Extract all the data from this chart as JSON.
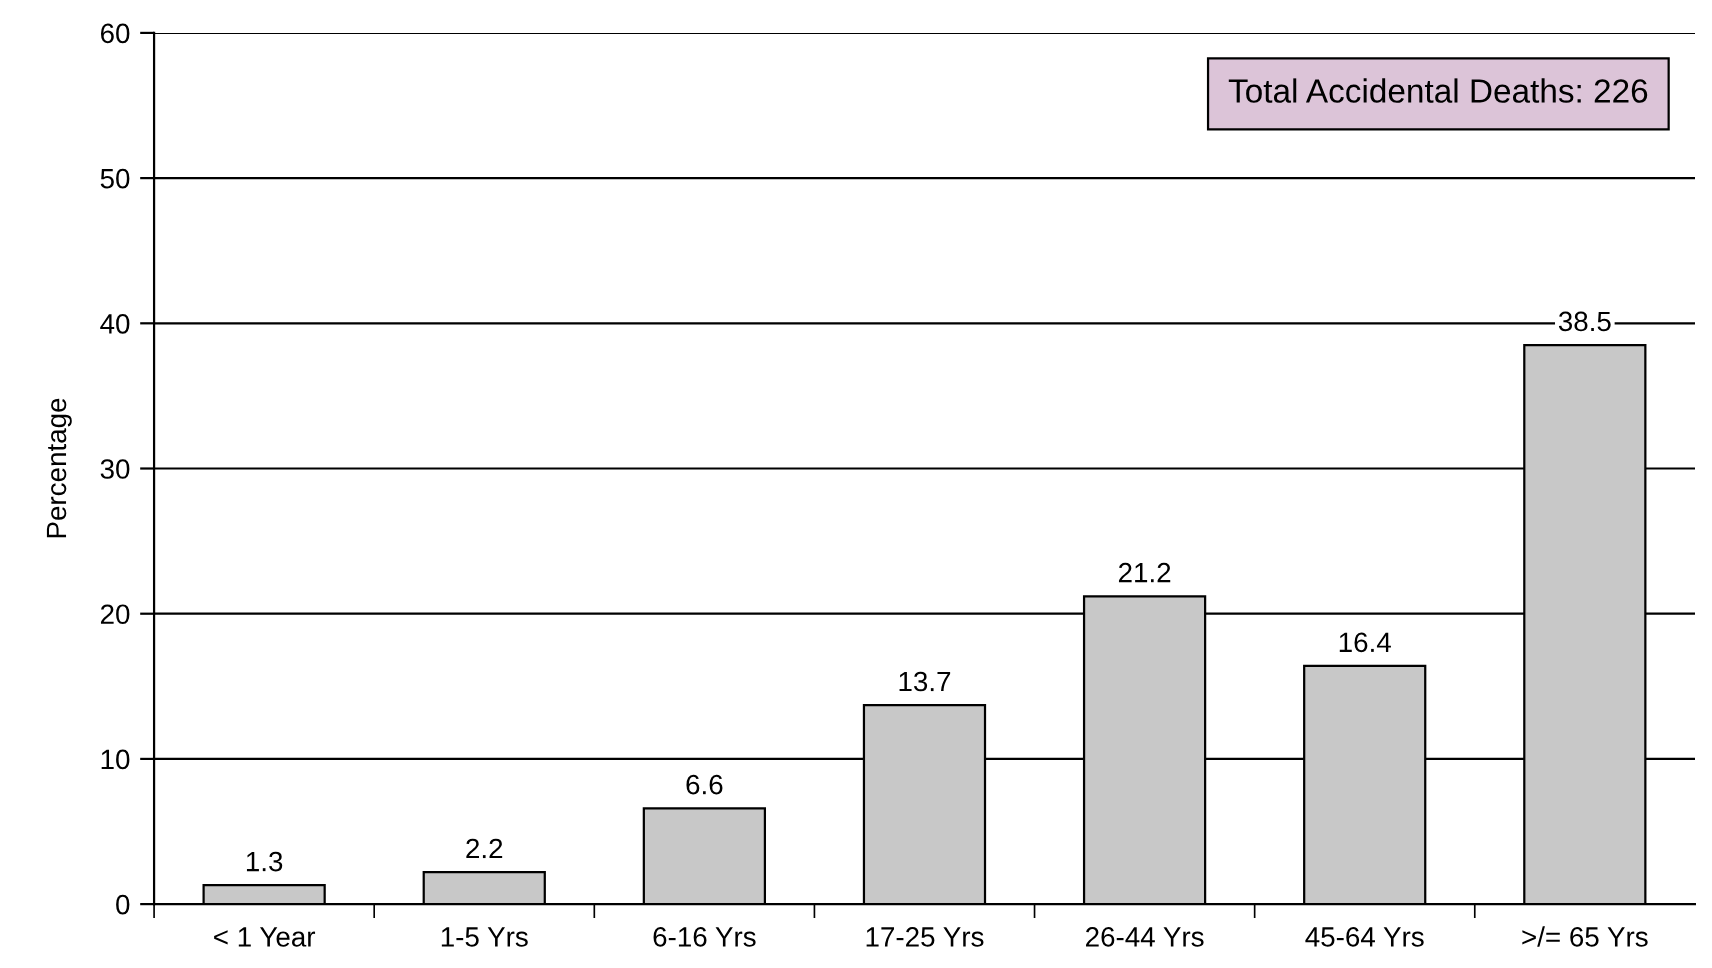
{
  "chart_data": {
    "type": "bar",
    "ylabel": "Percentage",
    "categories": [
      "< 1 Year",
      "1-5 Yrs",
      "6-16 Yrs",
      "17-25 Yrs",
      "26-44 Yrs",
      "45-64 Yrs",
      ">/= 65 Yrs"
    ],
    "values": [
      1.3,
      2.2,
      6.6,
      13.7,
      21.2,
      16.4,
      38.5
    ],
    "color": "#c8c8c8",
    "ylim": [
      0,
      60
    ],
    "yticks": [
      0,
      10,
      20,
      30,
      40,
      50,
      60
    ],
    "grid": "y",
    "data_labels": true,
    "legend": false,
    "annotations": [
      "Total Accidental Deaths: 226"
    ]
  }
}
